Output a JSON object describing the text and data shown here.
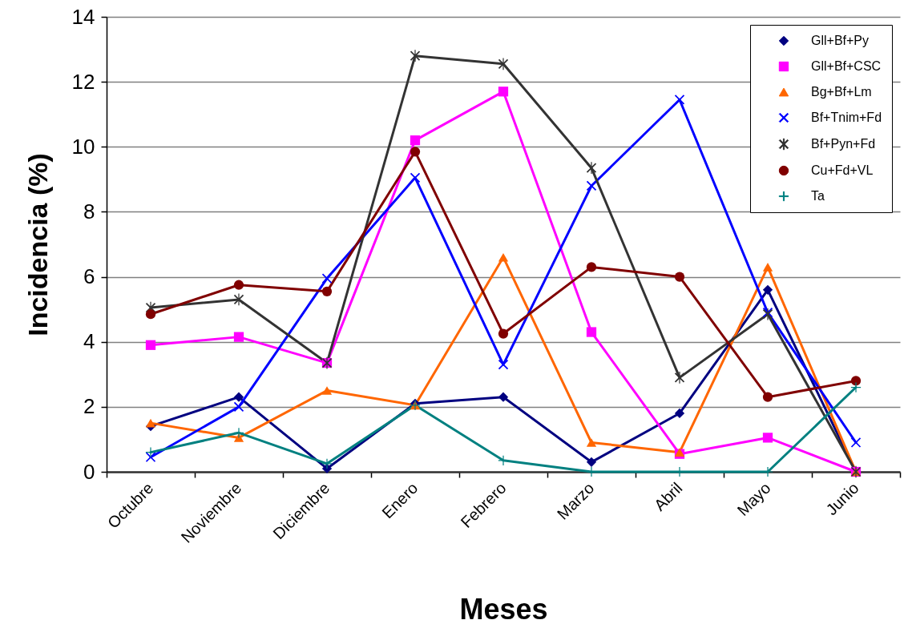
{
  "chart_data": {
    "type": "line",
    "xlabel": "Meses",
    "ylabel": "Incidencia (%)",
    "categories": [
      "Octubre",
      "Noviembre",
      "Diciembre",
      "Enero",
      "Febrero",
      "Marzo",
      "Abril",
      "Mayo",
      "Junio"
    ],
    "ylim": [
      0,
      14
    ],
    "yticks": [
      0,
      2,
      4,
      6,
      8,
      10,
      12,
      14
    ],
    "grid": "y",
    "legend": "top right",
    "line_style": "solid",
    "series": [
      {
        "name": "Gll+Bf+Py",
        "color": "#000080",
        "marker": "diamond",
        "values": [
          1.4,
          2.3,
          0.1,
          2.1,
          2.3,
          0.3,
          1.8,
          5.6,
          0
        ]
      },
      {
        "name": "Gll+Bf+CSC",
        "color": "#ff00ff",
        "marker": "square",
        "values": [
          3.9,
          4.15,
          3.35,
          10.2,
          11.7,
          4.3,
          0.55,
          1.05,
          0
        ]
      },
      {
        "name": "Bg+Bf+Lm",
        "color": "#ff6600",
        "marker": "triangle",
        "values": [
          1.5,
          1.05,
          2.5,
          2.05,
          6.6,
          0.9,
          0.6,
          6.3,
          0
        ]
      },
      {
        "name": "Bf+Tnim+Fd",
        "color": "#0000ff",
        "marker": "x",
        "values": [
          0.45,
          2.0,
          5.95,
          9.05,
          3.3,
          8.8,
          11.45,
          4.9,
          0.9
        ]
      },
      {
        "name": "Bf+Pyn+Fd",
        "color": "#333333",
        "marker": "cross",
        "values": [
          5.05,
          5.3,
          3.35,
          12.8,
          12.55,
          9.35,
          2.9,
          4.85,
          0
        ]
      },
      {
        "name": "Cu+Fd+VL",
        "color": "#800000",
        "marker": "circle",
        "values": [
          4.85,
          5.75,
          5.55,
          9.85,
          4.25,
          6.3,
          6.0,
          2.3,
          2.8
        ]
      },
      {
        "name": "Ta",
        "color": "#008080",
        "marker": "plus",
        "values": [
          0.6,
          1.2,
          0.25,
          2.05,
          0.35,
          0,
          0,
          0,
          2.6
        ]
      }
    ]
  }
}
